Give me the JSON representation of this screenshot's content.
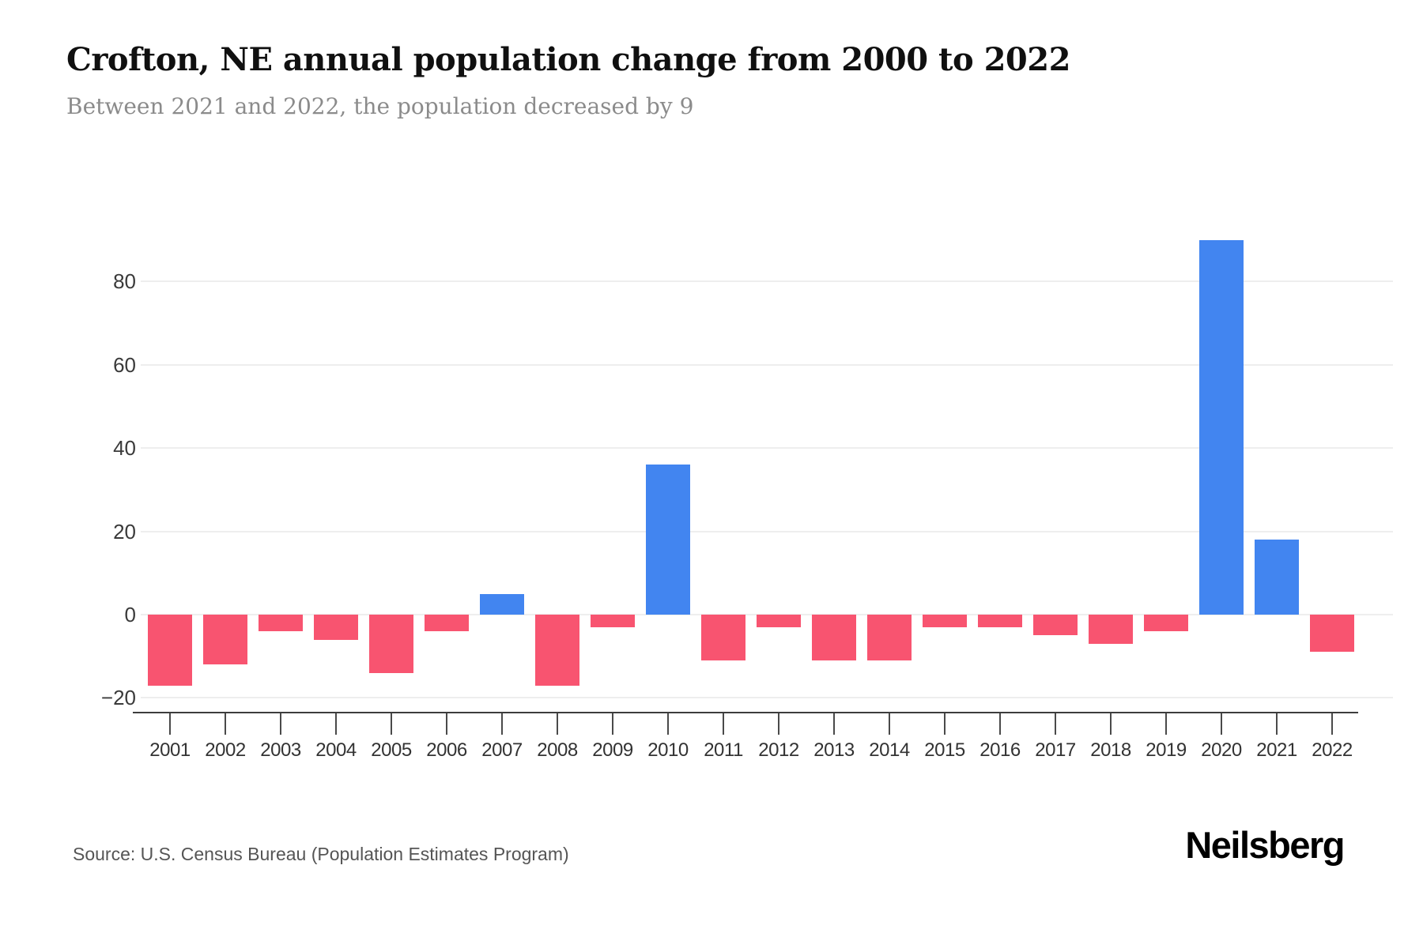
{
  "header": {
    "title": "Crofton, NE annual population change from 2000 to 2022",
    "subtitle": "Between 2021 and 2022, the population decreased by 9"
  },
  "chart_data": {
    "type": "bar",
    "title": "Crofton, NE annual population change from 2000 to 2022",
    "xlabel": "",
    "ylabel": "",
    "categories": [
      "2001",
      "2002",
      "2003",
      "2004",
      "2005",
      "2006",
      "2007",
      "2008",
      "2009",
      "2010",
      "2011",
      "2012",
      "2013",
      "2014",
      "2015",
      "2016",
      "2017",
      "2018",
      "2019",
      "2020",
      "2021",
      "2022"
    ],
    "values": [
      -17,
      -12,
      -4,
      -6,
      -14,
      -4,
      5,
      -17,
      -3,
      36,
      -11,
      -3,
      -11,
      -11,
      -3,
      -3,
      -5,
      -7,
      -4,
      90,
      18,
      -9
    ],
    "yticks": [
      {
        "value": 80,
        "label": "80"
      },
      {
        "value": 60,
        "label": "60"
      },
      {
        "value": 40,
        "label": "40"
      },
      {
        "value": 20,
        "label": "20"
      },
      {
        "value": 0,
        "label": "0"
      },
      {
        "value": -20,
        "label": "−20"
      }
    ],
    "ylim": [
      -20,
      95
    ],
    "grid": true,
    "legend": false,
    "colors": {
      "positive": "#4285F0",
      "negative": "#F85470",
      "gridline": "#EEEEEE",
      "axis": "#3D3D3D",
      "tick_label": "#3A3A3A"
    }
  },
  "footer": {
    "source": "Source: U.S. Census Bureau (Population Estimates Program)",
    "logo": "Neilsberg"
  }
}
